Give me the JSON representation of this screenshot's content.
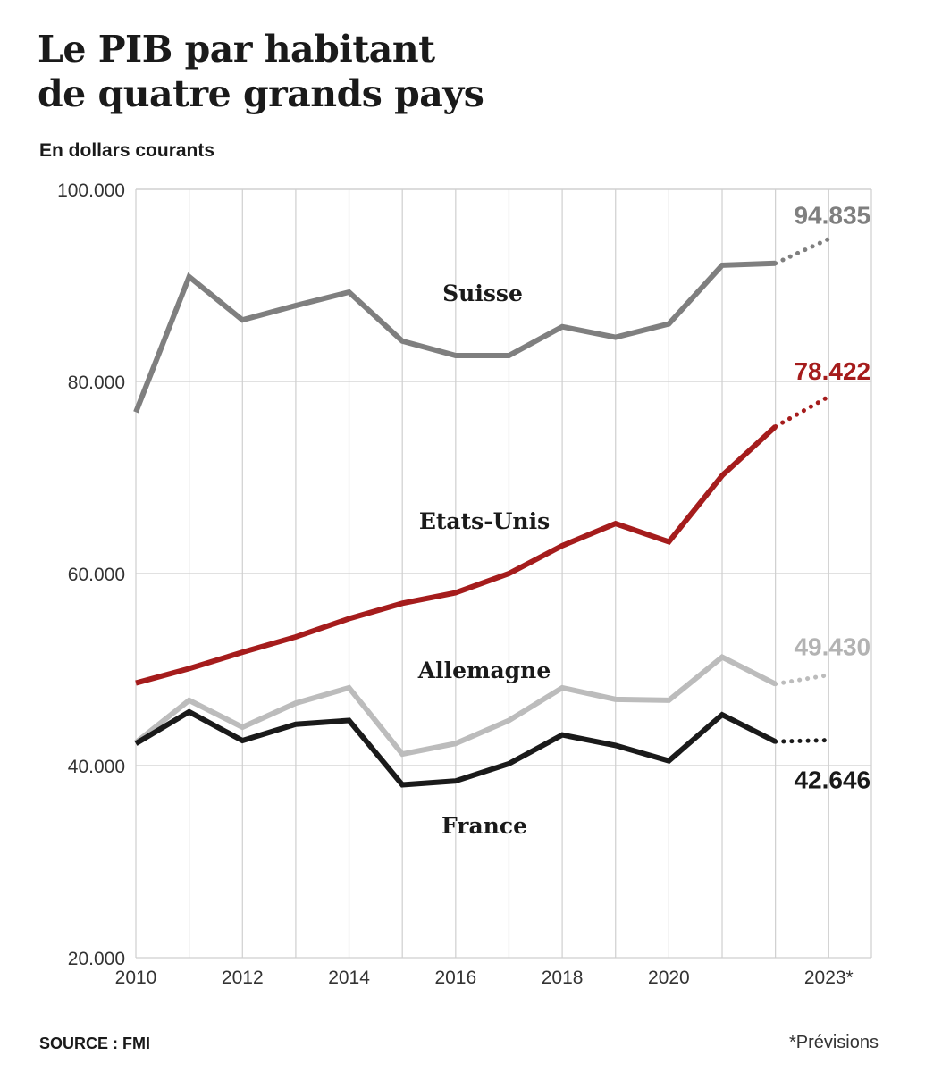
{
  "header": {
    "title_line1": "Le PIB par habitant",
    "title_line2": "de quatre grands pays",
    "subtitle": "En dollars courants"
  },
  "footer": {
    "source": "SOURCE : FMI",
    "note": "*Prévisions"
  },
  "chart_data": {
    "type": "line",
    "title": "Le PIB par habitant de quatre grands pays",
    "subtitle": "En dollars courants",
    "x": [
      2010,
      2011,
      2012,
      2013,
      2014,
      2015,
      2016,
      2017,
      2018,
      2019,
      2020,
      2021,
      2022,
      2023
    ],
    "x_tick_values": [
      2010,
      2012,
      2014,
      2016,
      2018,
      2020,
      2023
    ],
    "x_tick_labels": [
      "2010",
      "2012",
      "2014",
      "2016",
      "2018",
      "2020",
      "2023*"
    ],
    "y_ticks": [
      20000,
      40000,
      60000,
      80000,
      100000
    ],
    "y_tick_labels": [
      "20.000",
      "40.000",
      "60.000",
      "80.000",
      "100.000"
    ],
    "ylim": [
      20000,
      100000
    ],
    "xlim": [
      2010,
      2023.8
    ],
    "grid": true,
    "forecast_from": 2022,
    "series": [
      {
        "name": "Suisse",
        "color": "#7f7f7f",
        "values": [
          76800,
          90900,
          86400,
          87900,
          89300,
          84200,
          82700,
          82700,
          85700,
          84600,
          86000,
          92100,
          92300,
          94835
        ],
        "end_label": "94.835"
      },
      {
        "name": "Etats-Unis",
        "color": "#a51c1c",
        "values": [
          48600,
          50100,
          51800,
          53400,
          55300,
          56900,
          58000,
          60000,
          62900,
          65200,
          63300,
          70200,
          75300,
          78422
        ],
        "end_label": "78.422"
      },
      {
        "name": "Allemagne",
        "color": "#bcbcbc",
        "values": [
          42400,
          46800,
          44000,
          46500,
          48100,
          41200,
          42300,
          44700,
          48100,
          46900,
          46800,
          51300,
          48500,
          49430
        ],
        "end_label": "49.430"
      },
      {
        "name": "France",
        "color": "#1a1a1a",
        "values": [
          42300,
          45600,
          42600,
          44300,
          44700,
          38000,
          38400,
          40200,
          43200,
          42100,
          40500,
          45300,
          42500,
          42646
        ],
        "end_label": "42.646"
      }
    ]
  }
}
